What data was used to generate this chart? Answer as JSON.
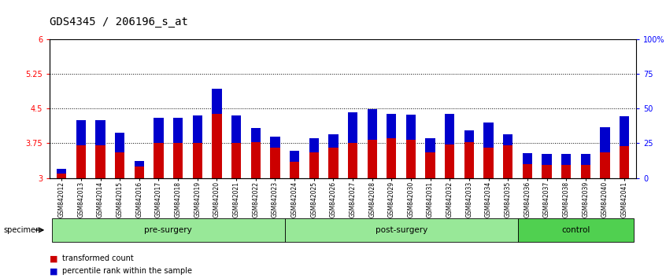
{
  "title": "GDS4345 / 206196_s_at",
  "samples": [
    "GSM842012",
    "GSM842013",
    "GSM842014",
    "GSM842015",
    "GSM842016",
    "GSM842017",
    "GSM842018",
    "GSM842019",
    "GSM842020",
    "GSM842021",
    "GSM842022",
    "GSM842023",
    "GSM842024",
    "GSM842025",
    "GSM842026",
    "GSM842027",
    "GSM842028",
    "GSM842029",
    "GSM842030",
    "GSM842031",
    "GSM842032",
    "GSM842033",
    "GSM842034",
    "GSM842035",
    "GSM842036",
    "GSM842037",
    "GSM842038",
    "GSM842039",
    "GSM842040",
    "GSM842041"
  ],
  "red_vals": [
    3.1,
    3.7,
    3.7,
    3.55,
    3.25,
    3.75,
    3.75,
    3.75,
    4.38,
    3.75,
    3.78,
    3.65,
    3.35,
    3.55,
    3.65,
    3.75,
    3.82,
    3.85,
    3.82,
    3.55,
    3.72,
    3.78,
    3.65,
    3.7,
    3.3,
    3.28,
    3.28,
    3.28,
    3.55,
    3.68
  ],
  "blue_pct": [
    3,
    18,
    18,
    14,
    4,
    18,
    18,
    20,
    18,
    20,
    10,
    8,
    8,
    10,
    10,
    22,
    22,
    18,
    18,
    10,
    22,
    8,
    18,
    8,
    8,
    8,
    8,
    8,
    18,
    22
  ],
  "ylim": [
    3.0,
    6.0
  ],
  "yticks": [
    3.0,
    3.75,
    4.5,
    5.25,
    6.0
  ],
  "ytick_labels": [
    "3",
    "3.75",
    "4.5",
    "5.25",
    "6"
  ],
  "right_yticks": [
    0,
    25,
    50,
    75,
    100
  ],
  "right_ytick_labels": [
    "0",
    "25",
    "50",
    "75",
    "100%"
  ],
  "hlines": [
    3.75,
    4.5,
    5.25
  ],
  "group_configs": [
    {
      "label": "pre-surgery",
      "start": 0,
      "end": 12,
      "color": "#98E898"
    },
    {
      "label": "post-surgery",
      "start": 12,
      "end": 24,
      "color": "#98E898"
    },
    {
      "label": "control",
      "start": 24,
      "end": 30,
      "color": "#50D050"
    }
  ],
  "red_color": "#CC0000",
  "blue_color": "#0000CC",
  "bar_width": 0.5,
  "baseline": 3.0,
  "legend_red": "transformed count",
  "legend_blue": "percentile rank within the sample",
  "specimen_label": "specimen",
  "title_fontsize": 10,
  "tick_fontsize": 7,
  "group_label_fontsize": 7.5,
  "sample_fontsize": 5.5
}
